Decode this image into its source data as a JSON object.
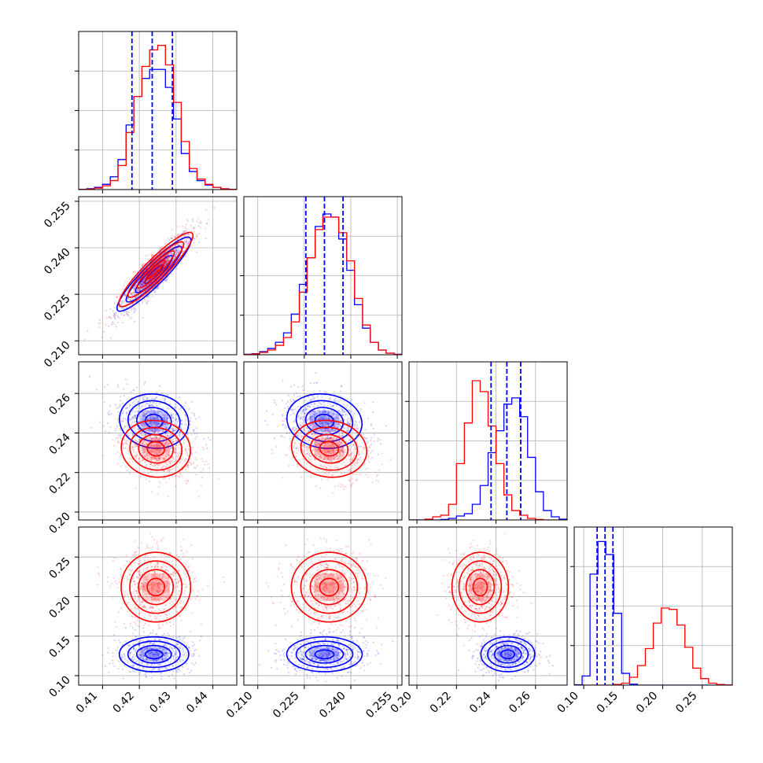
{
  "chart_data": {
    "type": "corner",
    "grid": true,
    "colors": {
      "series_a": "#0000ff",
      "series_b": "#ff0000"
    },
    "params": [
      {
        "range": [
          0.4035,
          0.4465
        ],
        "ticks": [
          0.41,
          0.42,
          0.43,
          0.44
        ],
        "tick_labels": [
          "0.41",
          "0.42",
          "0.43",
          "0.44"
        ]
      },
      {
        "range": [
          0.2055,
          0.2565
        ],
        "ticks": [
          0.21,
          0.225,
          0.24,
          0.255
        ],
        "tick_labels": [
          "0.210",
          "0.225",
          "0.240",
          "0.255"
        ]
      },
      {
        "range": [
          0.196,
          0.276
        ],
        "ticks": [
          0.2,
          0.22,
          0.24,
          0.26
        ],
        "tick_labels": [
          "0.20",
          "0.22",
          "0.24",
          "0.26"
        ]
      },
      {
        "range": [
          0.088,
          0.288
        ],
        "ticks": [
          0.1,
          0.15,
          0.2,
          0.25
        ],
        "tick_labels": [
          "0.10",
          "0.15",
          "0.20",
          "0.25"
        ]
      }
    ],
    "series": [
      {
        "color": "#0000ff",
        "mean": [
          0.424,
          0.2315,
          0.246,
          0.127
        ],
        "sigma": [
          0.0045,
          0.0058,
          0.0065,
          0.0105
        ],
        "quantiles": [
          [
            0.418,
            0.4235,
            0.429
          ],
          [
            0.2255,
            0.2315,
            0.2375
          ],
          [
            0.2375,
            0.2455,
            0.2525
          ],
          [
            0.117,
            0.127,
            0.137
          ]
        ],
        "contour_centers": [
          [
            [
              0.4245,
              0.2315
            ],
            [
              0.4245,
              0.2495
            ],
            [
              0.2305,
              0.2495
            ],
            [
              0.4245,
              0.127
            ],
            [
              0.2305,
              0.1265
            ],
            [
              0.2465,
              0.1265
            ]
          ]
        ]
      },
      {
        "color": "#ff0000",
        "mean": [
          0.4245,
          0.233,
          0.232,
          0.212
        ],
        "sigma": [
          0.0045,
          0.0058,
          0.0068,
          0.021
        ],
        "contour_centers": [
          [
            [
              0.4245,
              0.2325
            ],
            [
              0.4245,
              0.2335
            ],
            [
              0.2325,
              0.2335
            ],
            [
              0.4245,
              0.213
            ],
            [
              0.2325,
              0.212
            ],
            [
              0.2315,
              0.212
            ]
          ]
        ]
      }
    ],
    "histograms": [
      {
        "edges": [
          0.4035,
          0.4057,
          0.4078,
          0.41,
          0.4121,
          0.4142,
          0.4164,
          0.4185,
          0.4207,
          0.4228,
          0.425,
          0.4271,
          0.4293,
          0.4314,
          0.4336,
          0.4357,
          0.4379,
          0.44,
          0.4422,
          0.4443,
          0.4465
        ],
        "series_a": [
          0.2,
          0.6,
          1.5,
          3.5,
          8.5,
          20,
          43,
          62,
          74,
          80,
          80,
          68,
          47,
          24,
          12,
          6,
          3,
          1.5,
          0.5,
          0.2
        ],
        "series_b": [
          0.1,
          0.3,
          1,
          2.5,
          6,
          16,
          38,
          62,
          82,
          93,
          96,
          83,
          58,
          32,
          14,
          7,
          3.5,
          1.5,
          0.5,
          0.2
        ],
        "ymax": 100
      },
      {
        "edges": [
          0.2055,
          0.2081,
          0.2106,
          0.2132,
          0.2157,
          0.2183,
          0.2208,
          0.2234,
          0.2259,
          0.2285,
          0.231,
          0.2336,
          0.2361,
          0.2387,
          0.2412,
          0.2438,
          0.2463,
          0.2489,
          0.2514,
          0.254,
          0.2565
        ],
        "series_a": [
          0.3,
          0.7,
          2,
          4,
          8,
          14,
          26,
          45,
          62,
          82,
          90,
          88,
          74,
          54,
          32,
          17,
          8,
          3,
          1,
          0.3
        ],
        "series_b": [
          0.2,
          0.5,
          1.5,
          3,
          6,
          11,
          21,
          40,
          62,
          80,
          88,
          88,
          78,
          60,
          36,
          19,
          8,
          3,
          1,
          0.2
        ],
        "ymax": 96
      },
      {
        "edges": [
          0.196,
          0.2,
          0.204,
          0.208,
          0.212,
          0.216,
          0.22,
          0.224,
          0.228,
          0.232,
          0.236,
          0.24,
          0.244,
          0.248,
          0.252,
          0.256,
          0.26,
          0.264,
          0.268,
          0.272,
          0.276
        ],
        "series_a": [
          0,
          0,
          0,
          0,
          0.3,
          1,
          2.5,
          4,
          10,
          22,
          43,
          57,
          74,
          78,
          66,
          40,
          18,
          6,
          2,
          0.5
        ],
        "series_b": [
          0,
          0,
          0.5,
          2,
          3,
          10,
          36,
          62,
          89,
          82,
          60,
          36,
          16,
          6,
          3,
          1,
          0.3,
          0,
          0,
          0
        ],
        "ymax": 96
      },
      {
        "edges": [
          0.088,
          0.098,
          0.108,
          0.118,
          0.128,
          0.138,
          0.148,
          0.158,
          0.168,
          0.178,
          0.188,
          0.198,
          0.208,
          0.218,
          0.228,
          0.238,
          0.248,
          0.258,
          0.268,
          0.278,
          0.288
        ],
        "series_a": [
          0.5,
          14,
          170,
          220,
          200,
          110,
          18,
          1.5,
          0,
          0,
          0,
          0,
          0,
          0,
          0,
          0,
          0,
          0,
          0,
          0
        ],
        "series_b": [
          0,
          0,
          0,
          0,
          0,
          1,
          3,
          12,
          30,
          56,
          95,
          118,
          116,
          92,
          58,
          26,
          10,
          3,
          1,
          0.2
        ],
        "ymax": 230
      }
    ]
  }
}
